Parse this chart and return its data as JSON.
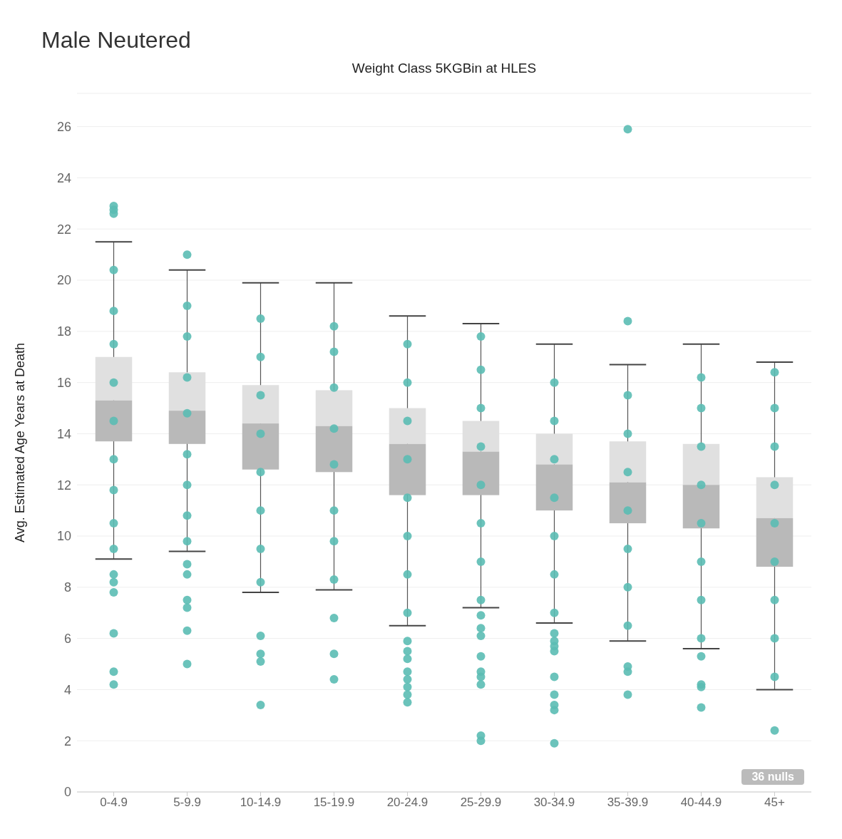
{
  "chart_data": {
    "type": "box",
    "title": "Male Neutered",
    "xlabel": "Weight Class 5KGBin at HLES",
    "ylabel": "Avg. Estimated Age Years at Death",
    "categories": [
      "0-4.9",
      "5-9.9",
      "10-14.9",
      "15-19.9",
      "20-24.9",
      "25-29.9",
      "30-34.9",
      "35-39.9",
      "40-44.9",
      "45+"
    ],
    "boxes": [
      {
        "low": 9.1,
        "q1": 13.7,
        "median": 15.3,
        "q3": 17.0,
        "high": 21.5,
        "outliers": [
          22.9,
          22.75,
          22.6,
          8.5,
          8.2,
          7.8,
          6.2,
          4.7,
          4.2
        ]
      },
      {
        "low": 9.4,
        "q1": 13.6,
        "median": 14.9,
        "q3": 16.4,
        "high": 20.4,
        "outliers": [
          21.0,
          8.9,
          8.5,
          7.5,
          7.2,
          6.3,
          5.0
        ]
      },
      {
        "low": 7.8,
        "q1": 12.6,
        "median": 14.4,
        "q3": 15.9,
        "high": 19.9,
        "outliers": [
          6.1,
          5.4,
          5.1,
          3.4
        ]
      },
      {
        "low": 7.9,
        "q1": 12.5,
        "median": 14.3,
        "q3": 15.7,
        "high": 19.9,
        "outliers": [
          6.8,
          5.4,
          4.4
        ]
      },
      {
        "low": 6.5,
        "q1": 11.6,
        "median": 13.6,
        "q3": 15.0,
        "high": 18.6,
        "outliers": [
          5.9,
          5.5,
          5.2,
          4.7,
          4.4,
          4.1,
          3.8,
          3.5
        ]
      },
      {
        "low": 7.2,
        "q1": 11.6,
        "median": 13.3,
        "q3": 14.5,
        "high": 18.3,
        "outliers": [
          6.9,
          6.4,
          6.1,
          5.3,
          4.7,
          4.5,
          4.2,
          2.2,
          2.0
        ]
      },
      {
        "low": 6.6,
        "q1": 11.0,
        "median": 12.8,
        "q3": 14.0,
        "high": 17.5,
        "outliers": [
          6.2,
          5.9,
          5.7,
          5.5,
          4.5,
          3.8,
          3.4,
          3.2,
          1.9
        ]
      },
      {
        "low": 5.9,
        "q1": 10.5,
        "median": 12.1,
        "q3": 13.7,
        "high": 16.7,
        "outliers": [
          25.9,
          18.4,
          4.9,
          4.7,
          3.8
        ]
      },
      {
        "low": 5.6,
        "q1": 10.3,
        "median": 12.0,
        "q3": 13.6,
        "high": 17.5,
        "outliers": [
          5.3,
          4.2,
          4.1,
          3.3
        ]
      },
      {
        "low": 4.0,
        "q1": 8.8,
        "median": 10.7,
        "q3": 12.3,
        "high": 16.8,
        "outliers": [
          2.4
        ]
      }
    ],
    "series": [
      {
        "type": "scatter",
        "color": "#5bbcb4",
        "x": [
          "0-4.9",
          "0-4.9",
          "0-4.9",
          "0-4.9",
          "0-4.9",
          "0-4.9",
          "0-4.9",
          "0-4.9",
          "0-4.9",
          "5-9.9",
          "5-9.9",
          "5-9.9",
          "5-9.9",
          "5-9.9",
          "5-9.9",
          "5-9.9",
          "5-9.9",
          "10-14.9",
          "10-14.9",
          "10-14.9",
          "10-14.9",
          "10-14.9",
          "10-14.9",
          "10-14.9",
          "10-14.9",
          "15-19.9",
          "15-19.9",
          "15-19.9",
          "15-19.9",
          "15-19.9",
          "15-19.9",
          "15-19.9",
          "15-19.9",
          "20-24.9",
          "20-24.9",
          "20-24.9",
          "20-24.9",
          "20-24.9",
          "20-24.9",
          "20-24.9",
          "20-24.9",
          "25-29.9",
          "25-29.9",
          "25-29.9",
          "25-29.9",
          "25-29.9",
          "25-29.9",
          "25-29.9",
          "25-29.9",
          "30-34.9",
          "30-34.9",
          "30-34.9",
          "30-34.9",
          "30-34.9",
          "30-34.9",
          "30-34.9",
          "35-39.9",
          "35-39.9",
          "35-39.9",
          "35-39.9",
          "35-39.9",
          "35-39.9",
          "35-39.9",
          "40-44.9",
          "40-44.9",
          "40-44.9",
          "40-44.9",
          "40-44.9",
          "40-44.9",
          "40-44.9",
          "40-44.9",
          "45+",
          "45+",
          "45+",
          "45+",
          "45+",
          "45+",
          "45+",
          "45+",
          "45+"
        ],
        "values": [
          9.5,
          10.5,
          11.8,
          13,
          14.5,
          16,
          17.5,
          18.8,
          20.4,
          9.8,
          10.8,
          12,
          13.2,
          14.8,
          16.2,
          17.8,
          19,
          8.2,
          9.5,
          11,
          12.5,
          14,
          15.5,
          17,
          18.5,
          8.3,
          9.8,
          11,
          12.8,
          14.2,
          15.8,
          17.2,
          18.2,
          7,
          8.5,
          10,
          11.5,
          13,
          14.5,
          16,
          17.5,
          7.5,
          9,
          10.5,
          12,
          13.5,
          15,
          16.5,
          17.8,
          7,
          8.5,
          10,
          11.5,
          13,
          14.5,
          16,
          6.5,
          8,
          9.5,
          11,
          12.5,
          14,
          15.5,
          6,
          7.5,
          9,
          10.5,
          12,
          13.5,
          15,
          16.2,
          4.5,
          6,
          7.5,
          9,
          10.5,
          12,
          13.5,
          15,
          16.4
        ]
      }
    ],
    "ylim": [
      0,
      27.3
    ],
    "yticks": [
      0,
      2,
      4,
      6,
      8,
      10,
      12,
      14,
      16,
      18,
      20,
      22,
      24,
      26
    ],
    "grid": "y",
    "marker": "circle",
    "annotations": [
      "36 nulls"
    ]
  }
}
